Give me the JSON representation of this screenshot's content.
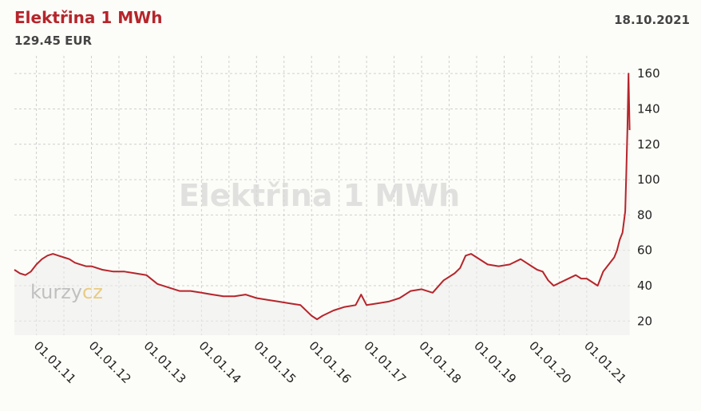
{
  "header": {
    "title": "Elektřina 1 MWh",
    "price": "129.45 EUR",
    "date": "18.10.2021"
  },
  "watermark": "Elektřina 1 MWh",
  "logo": {
    "part1": "kurzy",
    "part2": "cz"
  },
  "colors": {
    "line": "#b5252b",
    "title": "#b5252b",
    "area": "#ececec",
    "logo_accent": "#e5a200"
  },
  "chart_data": {
    "type": "area",
    "title": "Elektřina 1 MWh",
    "x_tick_labels": [
      "01.01.11",
      "01.01.12",
      "01.01.13",
      "01.01.14",
      "01.01.15",
      "01.01.16",
      "01.01.17",
      "01.01.18",
      "01.01.19",
      "01.01.20",
      "01.01.21"
    ],
    "x_range": [
      2010.6,
      2021.8
    ],
    "y_ticks": [
      20,
      40,
      60,
      80,
      100,
      120,
      140,
      160
    ],
    "ylim": [
      12,
      170
    ],
    "y_axis_side": "right",
    "grid": true,
    "series": [
      {
        "x": [
          2010.6,
          2010.7,
          2010.8,
          2010.9,
          2011.0,
          2011.1,
          2011.2,
          2011.3,
          2011.4,
          2011.5,
          2011.6,
          2011.7,
          2011.8,
          2011.9,
          2012.0,
          2012.2,
          2012.4,
          2012.6,
          2012.8,
          2013.0,
          2013.2,
          2013.4,
          2013.6,
          2013.8,
          2014.0,
          2014.2,
          2014.4,
          2014.6,
          2014.8,
          2015.0,
          2015.2,
          2015.4,
          2015.6,
          2015.8,
          2016.0,
          2016.1,
          2016.2,
          2016.4,
          2016.6,
          2016.8,
          2016.9,
          2017.0,
          2017.2,
          2017.4,
          2017.6,
          2017.8,
          2018.0,
          2018.2,
          2018.4,
          2018.6,
          2018.7,
          2018.8,
          2018.9,
          2019.0,
          2019.2,
          2019.4,
          2019.6,
          2019.8,
          2020.0,
          2020.1,
          2020.2,
          2020.3,
          2020.4,
          2020.6,
          2020.8,
          2020.9,
          2021.0,
          2021.1,
          2021.2,
          2021.3,
          2021.4,
          2021.5,
          2021.55,
          2021.6,
          2021.65,
          2021.7,
          2021.72,
          2021.74,
          2021.76,
          2021.78
        ],
        "y": [
          49,
          47,
          46,
          48,
          52,
          55,
          57,
          58,
          57,
          56,
          55,
          53,
          52,
          51,
          51,
          49,
          48,
          48,
          47,
          46,
          41,
          39,
          37,
          37,
          36,
          35,
          34,
          34,
          35,
          33,
          32,
          31,
          30,
          29,
          23,
          21,
          23,
          26,
          28,
          29,
          35,
          29,
          30,
          31,
          33,
          37,
          38,
          36,
          43,
          47,
          50,
          57,
          58,
          56,
          52,
          51,
          52,
          55,
          51,
          49,
          48,
          43,
          40,
          43,
          46,
          44,
          44,
          42,
          40,
          48,
          52,
          56,
          60,
          66,
          70,
          82,
          105,
          130,
          160,
          128
        ]
      }
    ]
  }
}
